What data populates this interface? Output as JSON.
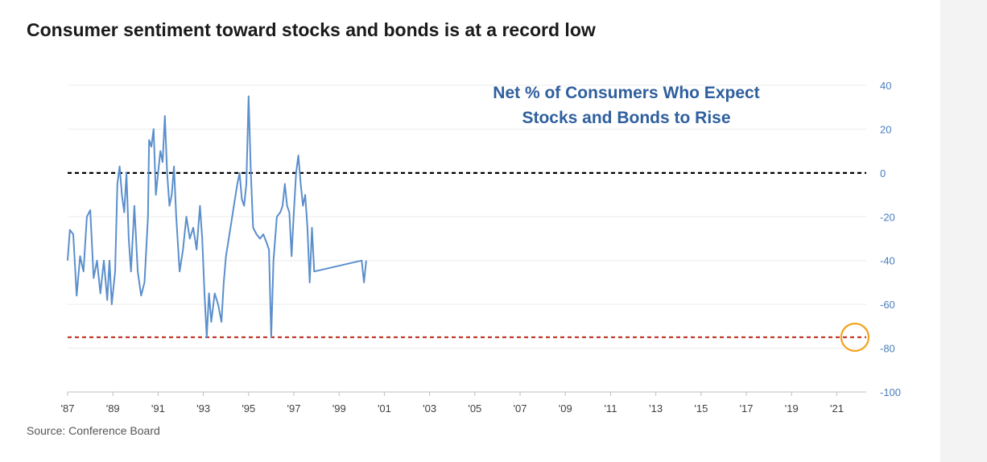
{
  "title": "Consumer sentiment toward stocks and bonds is at a record low",
  "source": "Source: Conference Board",
  "colors": {
    "line": "#5b8fcc",
    "zero_line": "#000000",
    "low_line": "#c0392b",
    "highlight_circle": "#f4a21c",
    "inner_title": "#2e5f9e",
    "y_ticks": "#4a7ebb"
  },
  "chart_data": {
    "type": "line",
    "title_lines": [
      "Net % of Consumers Who Expect",
      "Stocks and Bonds to Rise"
    ],
    "xlim": [
      1987,
      2022.3
    ],
    "ylim": [
      -100,
      40
    ],
    "y_ticks": [
      40,
      20,
      0,
      -20,
      -40,
      -60,
      -80,
      -100
    ],
    "x_ticks": [
      {
        "value": 1987,
        "label": "'87"
      },
      {
        "value": 1989,
        "label": "'89"
      },
      {
        "value": 1991,
        "label": "'91"
      },
      {
        "value": 1993,
        "label": "'93"
      },
      {
        "value": 1995,
        "label": "'95"
      },
      {
        "value": 1997,
        "label": "'97"
      },
      {
        "value": 1999,
        "label": "'99"
      },
      {
        "value": 2001,
        "label": "'01"
      },
      {
        "value": 2003,
        "label": "'03"
      },
      {
        "value": 2005,
        "label": "'05"
      },
      {
        "value": 2007,
        "label": "'07"
      },
      {
        "value": 2009,
        "label": "'09"
      },
      {
        "value": 2011,
        "label": "'11"
      },
      {
        "value": 2013,
        "label": "'13"
      },
      {
        "value": 2015,
        "label": "'15"
      },
      {
        "value": 2017,
        "label": "'17"
      },
      {
        "value": 2019,
        "label": "'19"
      },
      {
        "value": 2021,
        "label": "'21"
      }
    ],
    "reference_lines": [
      {
        "y": 0,
        "style": "dashed",
        "color": "#000000"
      },
      {
        "y": -75,
        "style": "dashed",
        "color": "#c0392b"
      }
    ],
    "highlight": {
      "x": 2021.8,
      "y": -75
    },
    "grid": "horizontal",
    "series": [
      {
        "values": [
          [
            1987.0,
            -40
          ],
          [
            1987.1,
            -26
          ],
          [
            1987.25,
            -28
          ],
          [
            1987.4,
            -56
          ],
          [
            1987.55,
            -38
          ],
          [
            1987.7,
            -45
          ],
          [
            1987.85,
            -20
          ],
          [
            1988.0,
            -17
          ],
          [
            1988.15,
            -48
          ],
          [
            1988.3,
            -40
          ],
          [
            1988.45,
            -55
          ],
          [
            1988.6,
            -40
          ],
          [
            1988.75,
            -58
          ],
          [
            1988.85,
            -40
          ],
          [
            1988.95,
            -60
          ],
          [
            1989.1,
            -45
          ],
          [
            1989.2,
            -5
          ],
          [
            1989.3,
            3
          ],
          [
            1989.4,
            -10
          ],
          [
            1989.5,
            -18
          ],
          [
            1989.6,
            0
          ],
          [
            1989.7,
            -30
          ],
          [
            1989.8,
            -45
          ],
          [
            1989.95,
            -15
          ],
          [
            1990.1,
            -45
          ],
          [
            1990.25,
            -56
          ],
          [
            1990.4,
            -50
          ],
          [
            1990.55,
            -20
          ],
          [
            1990.6,
            15
          ],
          [
            1990.7,
            12
          ],
          [
            1990.8,
            20
          ],
          [
            1990.9,
            -10
          ],
          [
            1991.0,
            0
          ],
          [
            1991.1,
            10
          ],
          [
            1991.2,
            5
          ],
          [
            1991.3,
            26
          ],
          [
            1991.4,
            0
          ],
          [
            1991.5,
            -15
          ],
          [
            1991.6,
            -10
          ],
          [
            1991.7,
            3
          ],
          [
            1991.8,
            -20
          ],
          [
            1991.95,
            -45
          ],
          [
            1992.1,
            -35
          ],
          [
            1992.25,
            -20
          ],
          [
            1992.4,
            -30
          ],
          [
            1992.55,
            -25
          ],
          [
            1992.7,
            -35
          ],
          [
            1992.85,
            -15
          ],
          [
            1992.95,
            -30
          ],
          [
            1993.05,
            -55
          ],
          [
            1993.15,
            -75
          ],
          [
            1993.25,
            -55
          ],
          [
            1993.35,
            -68
          ],
          [
            1993.5,
            -55
          ],
          [
            1993.65,
            -60
          ],
          [
            1993.8,
            -68
          ],
          [
            1993.9,
            -50
          ],
          [
            2000.0,
            -40
          ],
          [
            2000.1,
            -50
          ],
          [
            2000.2,
            -40
          ],
          [
            1994.0,
            -38
          ],
          [
            1994.2,
            -25
          ],
          [
            1994.35,
            -15
          ],
          [
            1994.5,
            -5
          ],
          [
            1994.6,
            0
          ],
          [
            1994.7,
            -12
          ],
          [
            1994.8,
            -15
          ],
          [
            1994.9,
            -5
          ],
          [
            1995.0,
            35
          ],
          [
            1995.1,
            0
          ],
          [
            1995.2,
            -25
          ],
          [
            1995.35,
            -28
          ],
          [
            1995.5,
            -30
          ],
          [
            1995.65,
            -28
          ],
          [
            1995.8,
            -32
          ],
          [
            1995.9,
            -35
          ],
          [
            1996.0,
            -75
          ],
          [
            1996.1,
            -40
          ],
          [
            1996.25,
            -20
          ],
          [
            1996.4,
            -18
          ],
          [
            1996.5,
            -15
          ],
          [
            1996.6,
            -5
          ],
          [
            1996.7,
            -15
          ],
          [
            1996.8,
            -18
          ],
          [
            1996.9,
            -38
          ],
          [
            1997.0,
            -18
          ],
          [
            1997.1,
            0
          ],
          [
            1997.2,
            8
          ],
          [
            1997.3,
            -5
          ],
          [
            1997.4,
            -15
          ],
          [
            1997.5,
            -10
          ],
          [
            1997.6,
            -25
          ],
          [
            1997.7,
            -50
          ],
          [
            1997.8,
            -25
          ],
          [
            1997.9,
            -45
          ]
        ]
      }
    ]
  }
}
